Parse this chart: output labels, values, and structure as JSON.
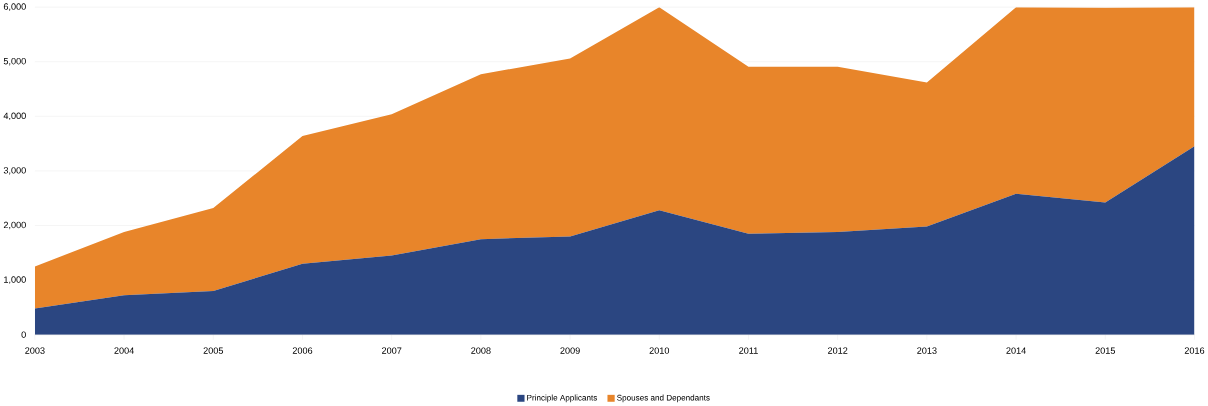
{
  "chart_data": {
    "type": "area",
    "stacked": true,
    "categories": [
      "2003",
      "2004",
      "2005",
      "2006",
      "2007",
      "2008",
      "2009",
      "2010",
      "2011",
      "2012",
      "2013",
      "2014",
      "2015",
      "2016"
    ],
    "series": [
      {
        "name": "Principle Applicants",
        "color": "#2b4681",
        "values": [
          480,
          720,
          800,
          1300,
          1450,
          1750,
          1800,
          2280,
          1850,
          1880,
          1980,
          2580,
          2420,
          3450
        ]
      },
      {
        "name": "Spouses and Dependants",
        "color": "#e8852a",
        "values": [
          770,
          1160,
          1520,
          2340,
          2590,
          3020,
          3260,
          3720,
          3060,
          3030,
          2640,
          3420,
          3570,
          2550
        ]
      }
    ],
    "ylim": [
      0,
      6000
    ],
    "yticks": [
      {
        "value": 0,
        "label": "0"
      },
      {
        "value": 1000,
        "label": "1,000"
      },
      {
        "value": 2000,
        "label": "2,000"
      },
      {
        "value": 3000,
        "label": "3,000"
      },
      {
        "value": 4000,
        "label": "4,000"
      },
      {
        "value": 5000,
        "label": "5,000"
      },
      {
        "value": 6000,
        "label": "6,000"
      }
    ],
    "grid": "y",
    "legend": "bottom"
  }
}
